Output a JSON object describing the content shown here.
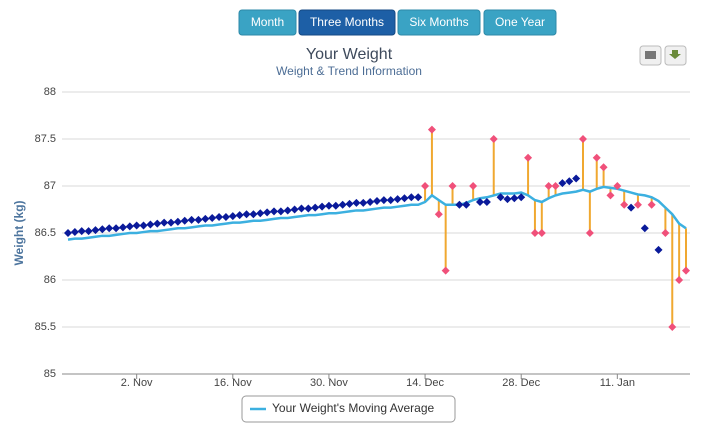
{
  "buttons": {
    "labels": [
      "Month",
      "Three Months",
      "Six Months",
      "One Year"
    ],
    "active": 1
  },
  "chart_data": {
    "type": "line",
    "title": "Your Weight",
    "subtitle": "Weight & Trend Information",
    "y_label": "Weight (kg)",
    "ylim": [
      85,
      88
    ],
    "yticks": [
      85,
      85.5,
      86,
      86.5,
      87,
      87.5,
      88
    ],
    "grid": true,
    "categories": [
      null,
      null,
      null,
      null,
      null,
      null,
      null,
      null,
      null,
      null,
      "2. Nov",
      null,
      null,
      null,
      null,
      null,
      null,
      null,
      null,
      null,
      null,
      null,
      null,
      null,
      "16. Nov",
      null,
      null,
      null,
      null,
      null,
      null,
      null,
      null,
      null,
      null,
      null,
      null,
      null,
      "30. Nov",
      null,
      null,
      null,
      null,
      null,
      null,
      null,
      null,
      null,
      null,
      null,
      null,
      null,
      "14. Dec",
      null,
      null,
      null,
      null,
      null,
      null,
      null,
      null,
      null,
      null,
      null,
      null,
      null,
      "28. Dec",
      null,
      null,
      null,
      null,
      null,
      null,
      null,
      null,
      null,
      null,
      null,
      null,
      null,
      "11. Jan",
      null,
      null,
      null,
      null,
      null,
      null,
      null,
      null,
      null,
      null
    ],
    "series": [
      {
        "name": "Your Weight's Moving Average",
        "color": "#3cb0e0",
        "values": [
          86.43,
          86.44,
          86.44,
          86.45,
          86.46,
          86.47,
          86.47,
          86.48,
          86.49,
          86.5,
          86.5,
          86.51,
          86.52,
          86.52,
          86.53,
          86.54,
          86.55,
          86.55,
          86.56,
          86.57,
          86.58,
          86.58,
          86.59,
          86.6,
          86.61,
          86.61,
          86.62,
          86.63,
          86.63,
          86.64,
          86.65,
          86.66,
          86.66,
          86.67,
          86.68,
          86.69,
          86.69,
          86.7,
          86.71,
          86.71,
          86.72,
          86.73,
          86.74,
          86.74,
          86.75,
          86.76,
          86.77,
          86.77,
          86.78,
          86.79,
          86.8,
          86.8,
          86.83,
          86.9,
          86.85,
          86.8,
          86.8,
          86.8,
          86.82,
          86.85,
          86.87,
          86.88,
          86.9,
          86.92,
          86.92,
          86.92,
          86.93,
          86.9,
          86.85,
          86.83,
          86.87,
          86.9,
          86.92,
          86.93,
          86.94,
          86.96,
          86.94,
          86.97,
          86.99,
          86.98,
          86.97,
          86.95,
          86.93,
          86.91,
          86.9,
          86.88,
          86.84,
          86.77,
          86.7,
          86.6,
          86.55
        ]
      }
    ],
    "markers": [
      {
        "color": "#0a1a9a",
        "values": [
          86.5,
          86.51,
          86.52,
          86.52,
          86.53,
          86.54,
          86.55,
          86.55,
          86.56,
          86.57,
          86.58,
          86.58,
          86.59,
          86.6,
          86.61,
          86.61,
          86.62,
          86.63,
          86.64,
          86.64,
          86.65,
          86.66,
          86.67,
          86.67,
          86.68,
          86.69,
          86.7,
          86.7,
          86.71,
          86.72,
          86.73,
          86.73,
          86.74,
          86.75,
          86.76,
          86.76,
          86.77,
          86.78,
          86.79,
          86.79,
          86.8,
          86.81,
          86.82,
          86.82,
          86.83,
          86.84,
          86.85,
          86.85,
          86.86,
          86.87,
          86.88,
          86.88,
          null,
          null,
          null,
          null,
          null,
          86.8,
          86.8,
          null,
          86.83,
          86.83,
          null,
          86.88,
          86.86,
          86.87,
          86.88,
          null,
          null,
          null,
          null,
          null,
          87.03,
          87.05,
          87.08,
          null,
          null,
          null,
          null,
          null,
          null,
          null,
          86.77,
          null,
          86.55,
          null,
          86.32,
          null,
          null,
          null,
          null
        ]
      },
      {
        "color": "#f0507a",
        "stem_color": "#f0a830",
        "values": [
          null,
          null,
          null,
          null,
          null,
          null,
          null,
          null,
          null,
          null,
          null,
          null,
          null,
          null,
          null,
          null,
          null,
          null,
          null,
          null,
          null,
          null,
          null,
          null,
          null,
          null,
          null,
          null,
          null,
          null,
          null,
          null,
          null,
          null,
          null,
          null,
          null,
          null,
          null,
          null,
          null,
          null,
          null,
          null,
          null,
          null,
          null,
          null,
          null,
          null,
          null,
          null,
          87.0,
          87.6,
          86.7,
          86.1,
          87.0,
          null,
          null,
          87.0,
          null,
          null,
          87.5,
          null,
          null,
          null,
          null,
          87.3,
          86.5,
          86.5,
          87.0,
          87.0,
          null,
          null,
          null,
          87.5,
          86.5,
          87.3,
          87.2,
          86.9,
          87.0,
          86.8,
          null,
          86.8,
          null,
          86.8,
          null,
          86.5,
          85.5,
          86.0,
          86.1
        ]
      }
    ]
  }
}
